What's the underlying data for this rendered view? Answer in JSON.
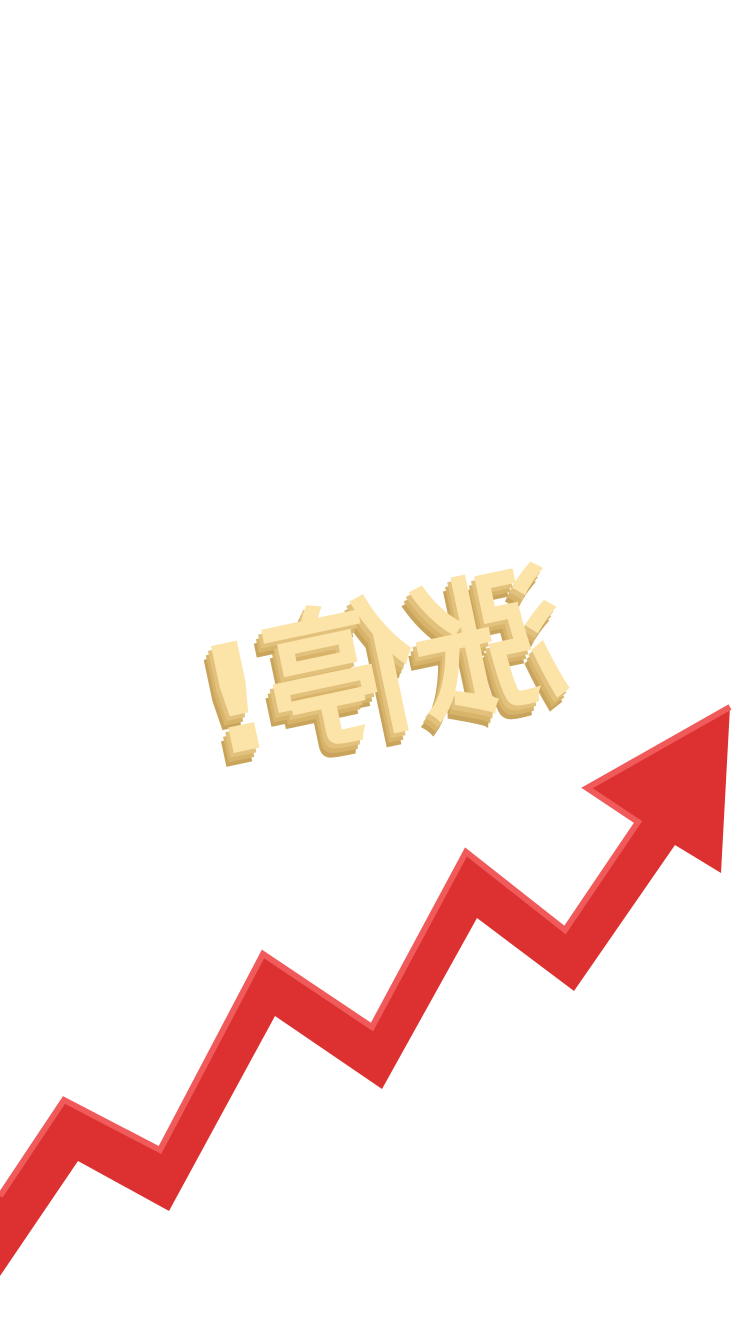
{
  "headline": {
    "text": "涨停!",
    "face_color": "#fce3a8",
    "shadow_color": "#e2c17c",
    "edge_color": "#d8b46a"
  },
  "arrow": {
    "direction": "up-right",
    "fill_color": "#dd3131",
    "highlight_color": "#f05a5a"
  },
  "background_color": "#ffffff"
}
